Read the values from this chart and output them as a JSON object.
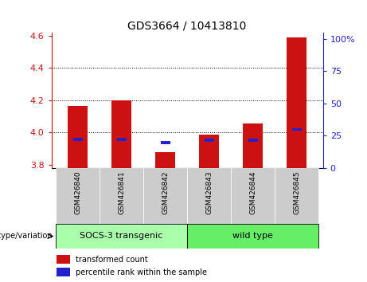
{
  "title": "GDS3664 / 10413810",
  "samples": [
    "GSM426840",
    "GSM426841",
    "GSM426842",
    "GSM426843",
    "GSM426844",
    "GSM426845"
  ],
  "red_bar_top": [
    4.165,
    4.2,
    3.875,
    3.985,
    4.055,
    4.59
  ],
  "blue_marker_y": [
    3.955,
    3.955,
    3.935,
    3.952,
    3.952,
    4.018
  ],
  "baseline": 3.78,
  "ylim": [
    3.78,
    4.62
  ],
  "y2lim": [
    0,
    105
  ],
  "yticks": [
    3.8,
    4.0,
    4.2,
    4.4,
    4.6
  ],
  "y2ticks": [
    0,
    25,
    50,
    75,
    100
  ],
  "y2ticklabels": [
    "0",
    "25",
    "50",
    "75",
    "100%"
  ],
  "red_color": "#cc1111",
  "blue_color": "#2222cc",
  "bar_width": 0.45,
  "group1_label": "SOCS-3 transgenic",
  "group2_label": "wild type",
  "group1_color": "#aaffaa",
  "group2_color": "#66ee66",
  "sample_bg_color": "#cccccc",
  "xlabel_left": "genotype/variation",
  "legend1": "transformed count",
  "legend2": "percentile rank within the sample",
  "title_fontsize": 10,
  "tick_fontsize": 8,
  "sample_fontsize": 6.5,
  "group_fontsize": 8,
  "legend_fontsize": 7
}
